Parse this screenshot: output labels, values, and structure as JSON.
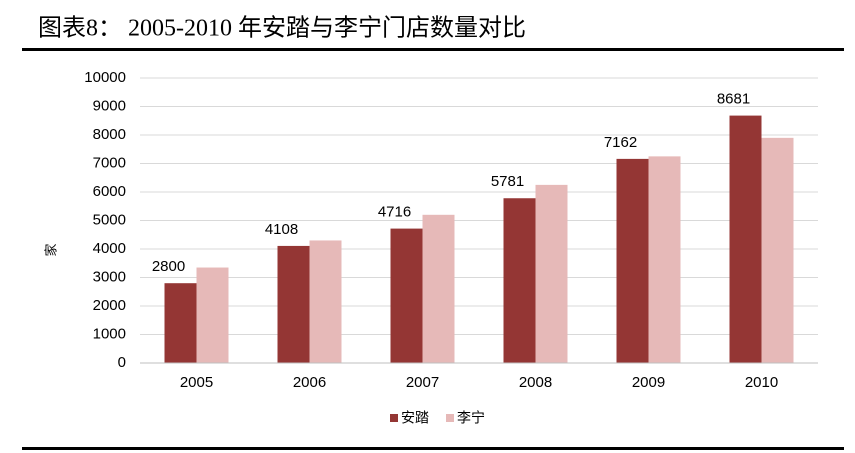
{
  "chart_data": {
    "type": "bar",
    "title": "图表8：  2005-2010 年安踏与李宁门店数量对比",
    "y_label": "家",
    "categories": [
      "2005",
      "2006",
      "2007",
      "2008",
      "2009",
      "2010"
    ],
    "series": [
      {
        "name": "安踏",
        "color": "#943634",
        "values": [
          2800,
          4108,
          4716,
          5781,
          7162,
          8681
        ]
      },
      {
        "name": "李宁",
        "color": "#e6b9b8",
        "values": [
          3350,
          4300,
          5200,
          6250,
          7250,
          7900
        ]
      }
    ],
    "ylim": [
      0,
      10000
    ],
    "yticks": [
      0,
      1000,
      2000,
      3000,
      4000,
      5000,
      6000,
      7000,
      8000,
      9000,
      10000
    ],
    "grid": true,
    "legend": "bottom",
    "data_labels_series": [
      0
    ]
  }
}
